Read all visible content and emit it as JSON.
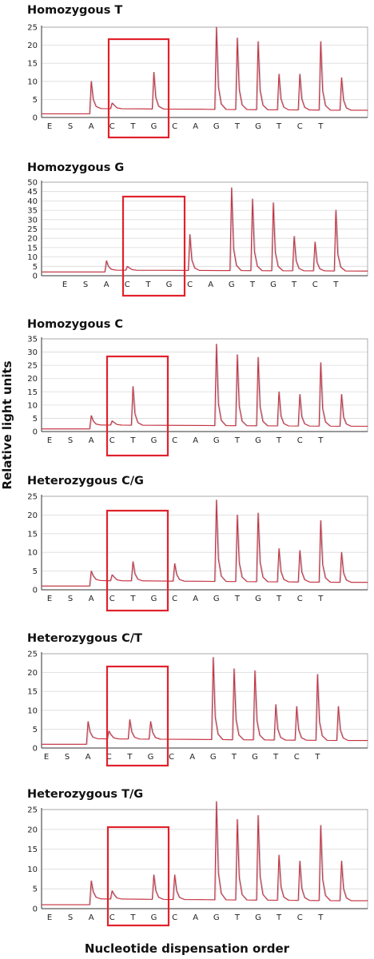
{
  "chart_data": {
    "type": "line",
    "ylabel": "Relative light units",
    "xlabel": "Nucleotide dispensation order",
    "dispensation_order": [
      "E",
      "S",
      "A",
      "C",
      "T",
      "G",
      "C",
      "A",
      "G",
      "T",
      "G",
      "T",
      "C",
      "T"
    ],
    "highlight_range": [
      "C",
      "G"
    ],
    "colors": {
      "trace": "#c9303c",
      "trace_shadow": "#9aa3b8",
      "highlight": "#e0222c",
      "grid": "#d9d9d9"
    },
    "panels": [
      {
        "title": "Homozygous T",
        "ylim": [
          0,
          25
        ],
        "yticks": [
          0,
          5,
          10,
          15,
          20,
          25
        ],
        "baseline_start": 1,
        "baseline": 2.5,
        "baseline_end": 2,
        "peaks": [
          0,
          10,
          4,
          0,
          12.5,
          0,
          0,
          25,
          22,
          21,
          12,
          12,
          21,
          11
        ]
      },
      {
        "title": "Homozygous G",
        "ylim": [
          0,
          50
        ],
        "yticks": [
          0,
          5,
          10,
          15,
          20,
          25,
          30,
          35,
          40,
          45,
          50
        ],
        "baseline_start": 2,
        "baseline": 3,
        "baseline_end": 2.5,
        "peaks": [
          0,
          8,
          5,
          0,
          0,
          22,
          0,
          47,
          41,
          39,
          21,
          18,
          35,
          0
        ]
      },
      {
        "title": "Homozygous C",
        "ylim": [
          0,
          35
        ],
        "yticks": [
          0,
          5,
          10,
          15,
          20,
          25,
          30,
          35
        ],
        "baseline_start": 1,
        "baseline": 2.5,
        "baseline_end": 2,
        "peaks": [
          0,
          6,
          4,
          17,
          0,
          0,
          0,
          33,
          29,
          28,
          15,
          14,
          26,
          14
        ]
      },
      {
        "title": "Heterozygous C/G",
        "ylim": [
          0,
          25
        ],
        "yticks": [
          0,
          5,
          10,
          15,
          20,
          25
        ],
        "baseline_start": 1,
        "baseline": 2.5,
        "baseline_end": 2,
        "peaks": [
          0,
          5,
          4,
          7.5,
          0,
          7,
          0,
          24,
          20,
          20.5,
          11,
          10.5,
          18.5,
          10
        ]
      },
      {
        "title": "Heterozygous C/T",
        "ylim": [
          0,
          25
        ],
        "yticks": [
          0,
          5,
          10,
          15,
          20,
          25
        ],
        "baseline_start": 1,
        "baseline": 2.5,
        "baseline_end": 2,
        "peaks": [
          0,
          7,
          4.5,
          7.5,
          7,
          0,
          0,
          24,
          21,
          20.5,
          11.5,
          11,
          19.5,
          11
        ]
      },
      {
        "title": "Heterozygous T/G",
        "ylim": [
          0,
          25
        ],
        "yticks": [
          0,
          5,
          10,
          15,
          20,
          25
        ],
        "baseline_start": 1,
        "baseline": 2.5,
        "baseline_end": 2,
        "peaks": [
          0,
          7,
          4.5,
          0,
          8.5,
          8.5,
          0,
          27,
          22.5,
          23.5,
          13.5,
          12,
          21,
          12
        ]
      }
    ]
  }
}
